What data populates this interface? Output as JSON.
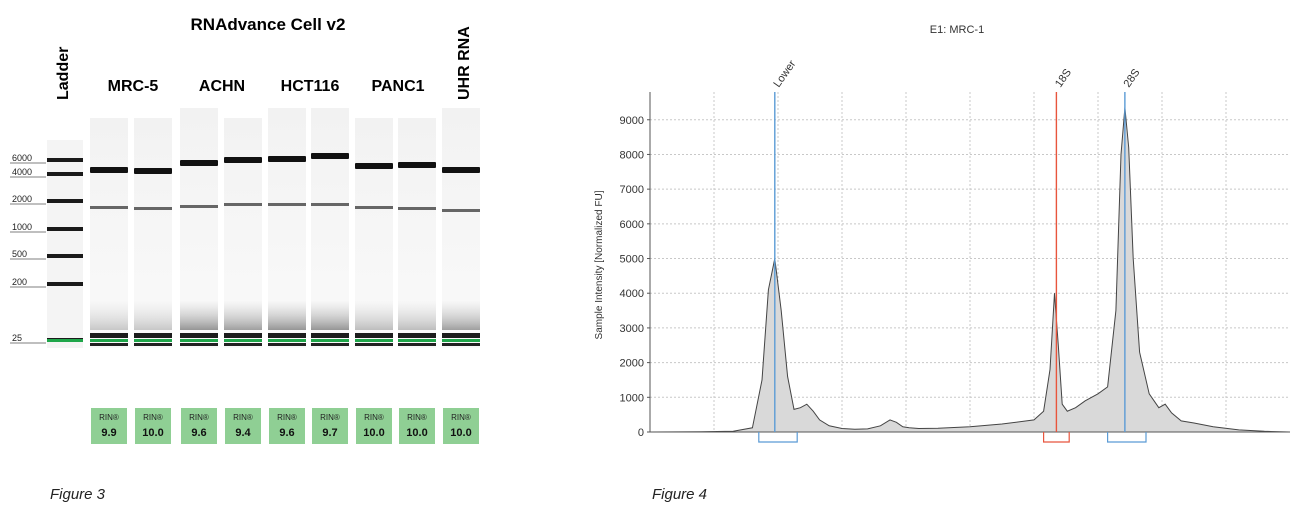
{
  "gel": {
    "title": "RNAdvance Cell v2",
    "ladder_label": "Ladder",
    "uhr_label": "UHR RNA",
    "groups": [
      "MRC-5",
      "ACHN",
      "HCT116",
      "PANC1"
    ],
    "size_markers": [
      "6000",
      "4000",
      "2000",
      "1000",
      "500",
      "200",
      "25"
    ],
    "rin_prefix": "RIN®",
    "lanes": [
      {
        "group": "MRC-5",
        "rin": "9.9"
      },
      {
        "group": "MRC-5",
        "rin": "10.0"
      },
      {
        "group": "ACHN",
        "rin": "9.6"
      },
      {
        "group": "ACHN",
        "rin": "9.4"
      },
      {
        "group": "HCT116",
        "rin": "9.6"
      },
      {
        "group": "HCT116",
        "rin": "9.7"
      },
      {
        "group": "PANC1",
        "rin": "10.0"
      },
      {
        "group": "PANC1",
        "rin": "10.0"
      },
      {
        "group": "UHR RNA",
        "rin": "10.0"
      }
    ],
    "rin_box_color": "#8fcf94",
    "lower_marker_color": "#1fa64a"
  },
  "captions": {
    "fig3": "Figure 3",
    "fig4": "Figure 4"
  },
  "chart_data": {
    "type": "area",
    "title": "E1: MRC-1",
    "xlabel": "",
    "ylabel": "Sample Intensity [Normalized FU]",
    "ylim": [
      0,
      9800
    ],
    "yticks": [
      0,
      1000,
      2000,
      3000,
      4000,
      5000,
      6000,
      7000,
      8000,
      9000
    ],
    "xlim": [
      0,
      100
    ],
    "grid": true,
    "fill_color": "#d9d9d9",
    "series": [
      {
        "x": [
          0,
          8,
          13,
          16,
          17.5,
          18.5,
          19.5,
          20.5,
          21.5,
          22.5,
          23.5,
          24.5,
          25.5,
          26.5,
          28,
          30,
          32,
          34,
          36,
          37.5,
          38.5,
          39.5,
          40.5,
          42,
          45,
          50,
          55,
          60,
          61.5,
          62.5,
          63.2,
          63.8,
          64.4,
          65.2,
          66.5,
          68,
          70,
          71.5,
          72.8,
          73.6,
          74.2,
          74.8,
          75.5,
          76.5,
          78,
          79.5,
          80.5,
          81.5,
          83,
          85,
          88,
          92,
          96,
          100
        ],
        "y": [
          0,
          10,
          20,
          120,
          1500,
          4100,
          5000,
          3500,
          1600,
          650,
          700,
          800,
          600,
          350,
          180,
          100,
          80,
          90,
          180,
          350,
          280,
          150,
          120,
          100,
          110,
          150,
          230,
          350,
          600,
          1800,
          4000,
          2500,
          800,
          600,
          700,
          900,
          1100,
          1300,
          3500,
          8000,
          9350,
          8200,
          5000,
          2300,
          1100,
          700,
          800,
          550,
          320,
          260,
          150,
          60,
          20,
          0
        ]
      }
    ],
    "peak_labels": [
      {
        "label": "Lower",
        "x": 19.5,
        "color": "#5b9bd5",
        "range": [
          17,
          23
        ]
      },
      {
        "label": "18S",
        "x": 63.5,
        "color": "#e8553d",
        "range": [
          61.5,
          65.5
        ]
      },
      {
        "label": "28S",
        "x": 74.2,
        "color": "#5b9bd5",
        "range": [
          71.5,
          77.5
        ]
      }
    ]
  }
}
